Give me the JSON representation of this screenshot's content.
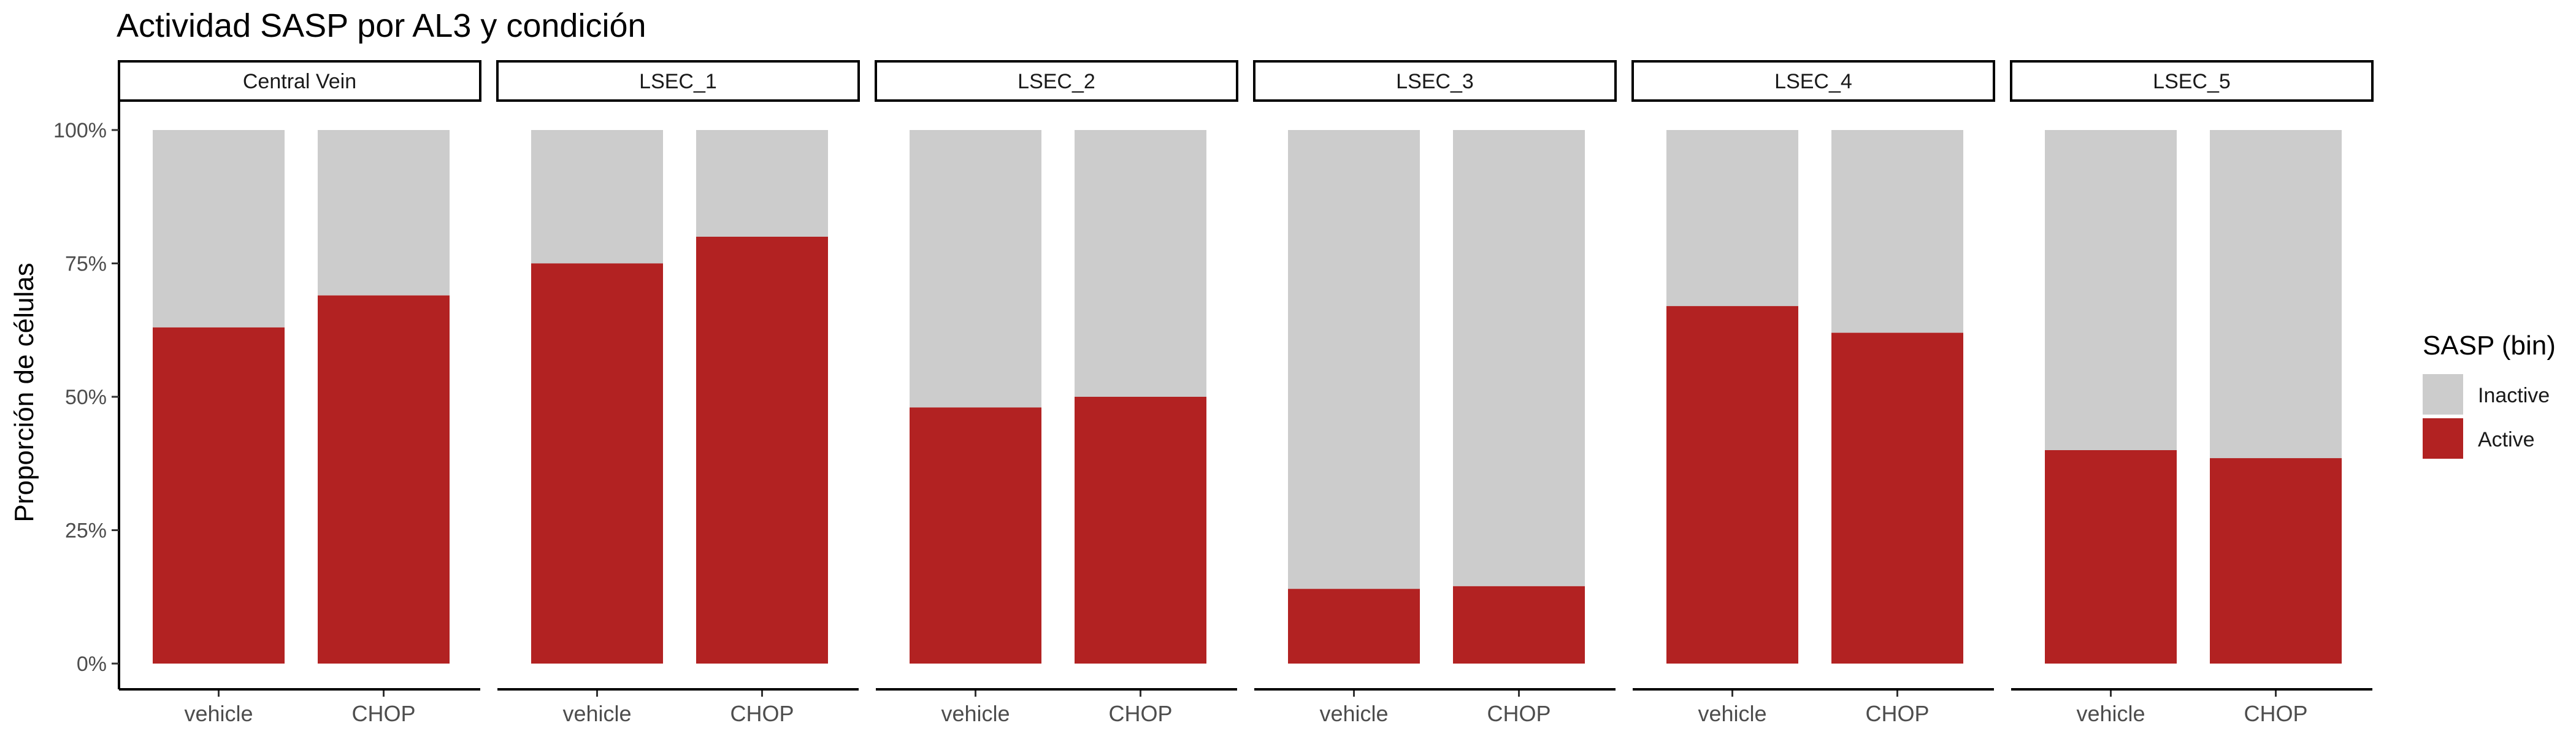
{
  "chart_data": {
    "type": "bar",
    "stacked": true,
    "title": "Actividad SASP por AL3 y condición",
    "ylabel": "Proporción de células",
    "xlabel": "",
    "ylim": [
      0,
      1
    ],
    "y_ticks": [
      "0%",
      "25%",
      "50%",
      "75%",
      "100%"
    ],
    "categories": [
      "vehicle",
      "CHOP"
    ],
    "legend": {
      "title": "SASP (bin)",
      "position": "right",
      "items": [
        {
          "label": "Inactive",
          "color": "#cccccc"
        },
        {
          "label": "Active",
          "color": "#b22222"
        }
      ]
    },
    "facets": [
      {
        "label": "Central Vein",
        "active": [
          0.63,
          0.69
        ]
      },
      {
        "label": "LSEC_1",
        "active": [
          0.75,
          0.8
        ]
      },
      {
        "label": "LSEC_2",
        "active": [
          0.48,
          0.5
        ]
      },
      {
        "label": "LSEC_3",
        "active": [
          0.14,
          0.145
        ]
      },
      {
        "label": "LSEC_4",
        "active": [
          0.67,
          0.62
        ]
      },
      {
        "label": "LSEC_5",
        "active": [
          0.4,
          0.385
        ]
      }
    ]
  }
}
